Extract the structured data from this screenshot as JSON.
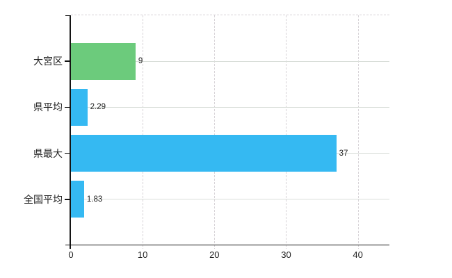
{
  "chart_data": {
    "type": "bar",
    "orientation": "horizontal",
    "title": "",
    "xlabel": "",
    "ylabel": "",
    "categories": [
      "大宮区",
      "県平均",
      "県最大",
      "全国平均"
    ],
    "values": [
      9,
      2.29,
      37,
      1.83
    ],
    "value_labels": [
      "9",
      "2.29",
      "37",
      "1.83"
    ],
    "bar_colors": [
      "#6ccb7c",
      "#35b9f2",
      "#35b9f2",
      "#35b9f2"
    ],
    "x_ticks": [
      0,
      10,
      20,
      30,
      40
    ],
    "x_tick_labels": [
      "0",
      "10",
      "20",
      "30",
      "40"
    ],
    "xlim": [
      0,
      44.4
    ],
    "grid": true,
    "legend": false
  },
  "colors": {
    "background": "#ffffff",
    "bar_green": "#6ccb7c",
    "bar_blue": "#35b9f2",
    "grid": "#d7d3d7",
    "grid_solid": "#d9ded9",
    "top_border": "#d6cfd6",
    "axis": "#141414",
    "text": "#222222"
  }
}
